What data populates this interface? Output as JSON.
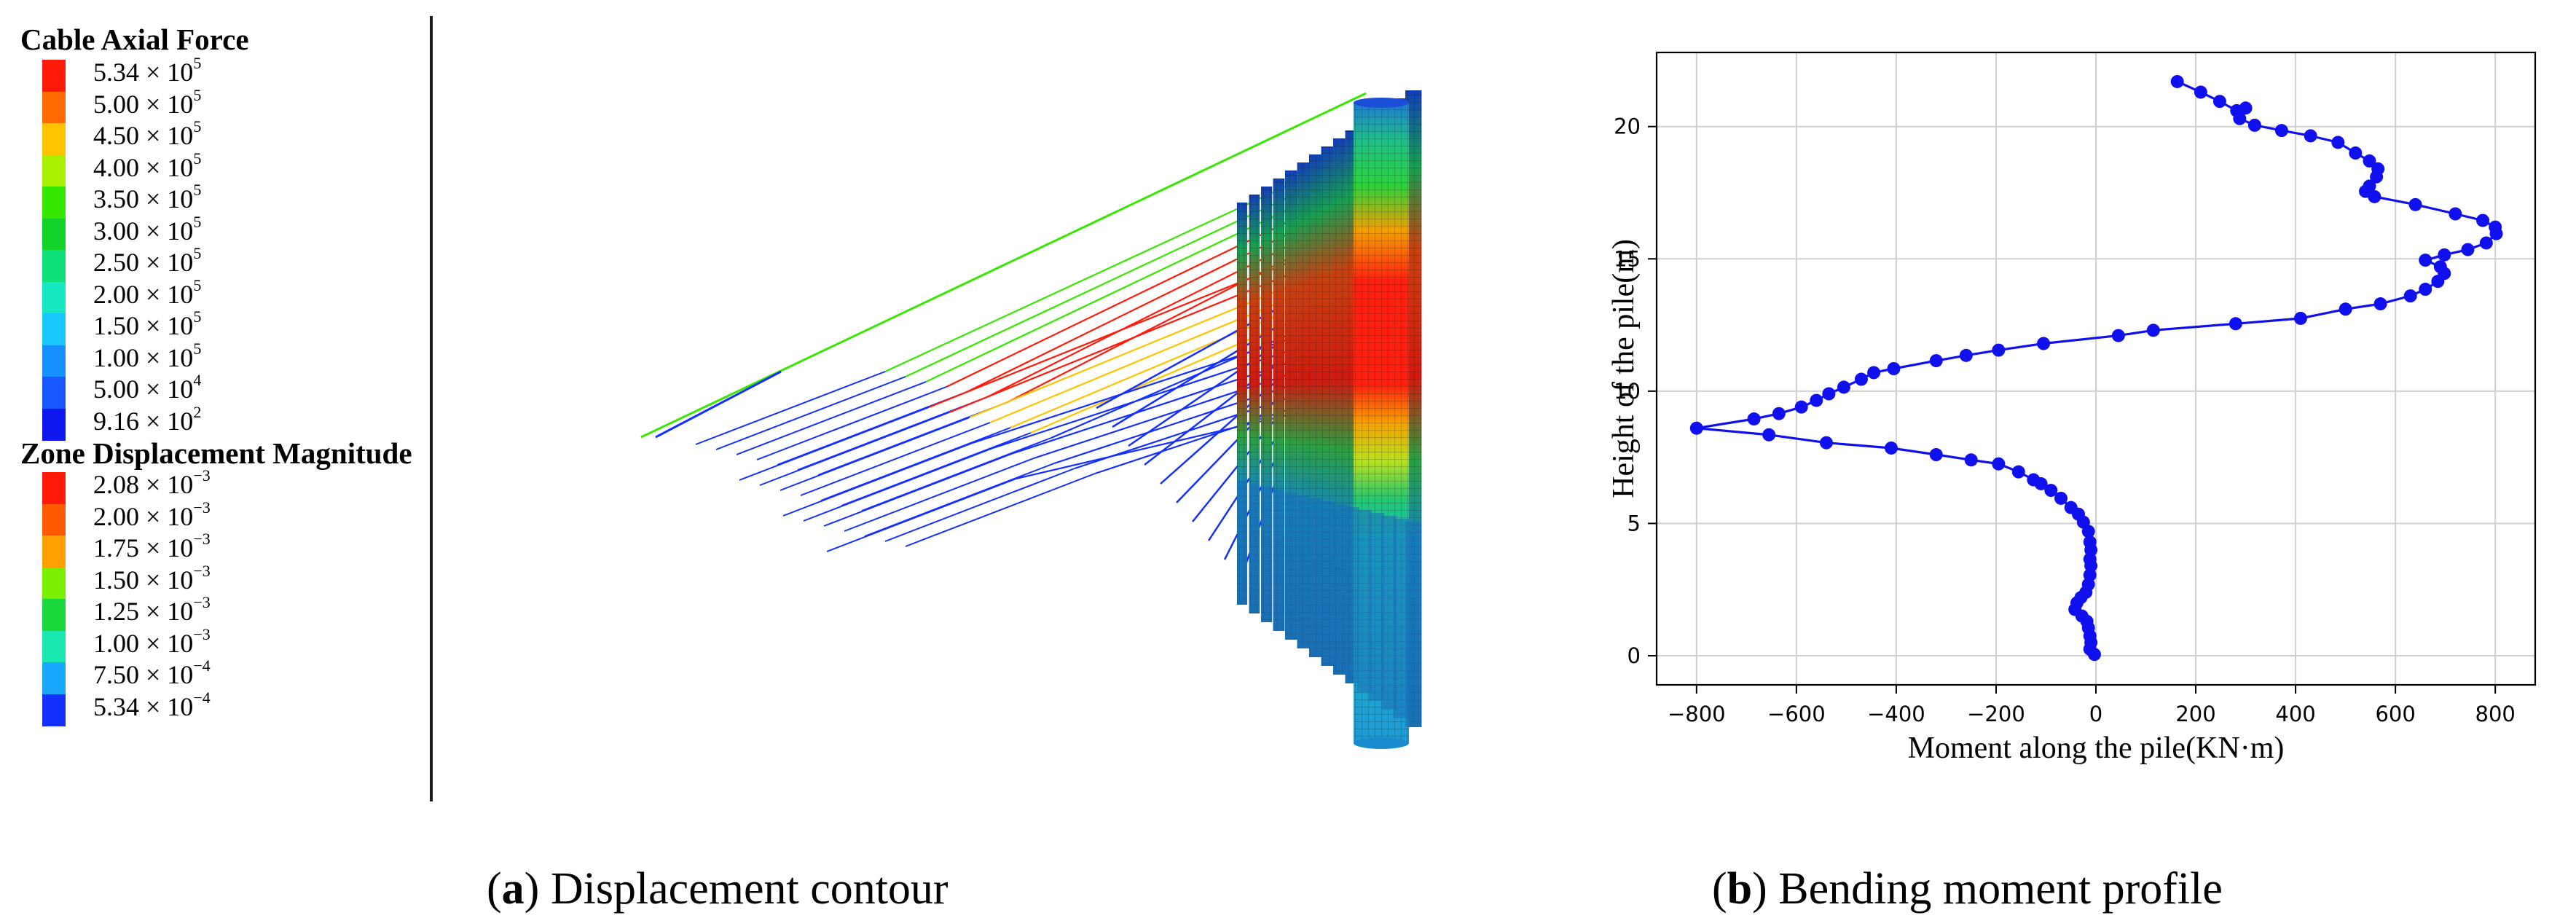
{
  "legend": {
    "cable_title": "Cable Axial Force",
    "cable_items": [
      {
        "label_base": "5.34 × 10",
        "label_exp": "5",
        "color": "#ff1a0a"
      },
      {
        "label_base": "5.00 × 10",
        "label_exp": "5",
        "color": "#ff6a00"
      },
      {
        "label_base": "4.50 × 10",
        "label_exp": "5",
        "color": "#ffc400"
      },
      {
        "label_base": "4.00 × 10",
        "label_exp": "5",
        "color": "#a8f000"
      },
      {
        "label_base": "3.50 × 10",
        "label_exp": "5",
        "color": "#36e800"
      },
      {
        "label_base": "3.00 × 10",
        "label_exp": "5",
        "color": "#13d22a"
      },
      {
        "label_base": "2.50 × 10",
        "label_exp": "5",
        "color": "#10e07a"
      },
      {
        "label_base": "2.00 × 10",
        "label_exp": "5",
        "color": "#16e8c2"
      },
      {
        "label_base": "1.50 × 10",
        "label_exp": "5",
        "color": "#17c8ff"
      },
      {
        "label_base": "1.00 × 10",
        "label_exp": "5",
        "color": "#1690ff"
      },
      {
        "label_base": "5.00 × 10",
        "label_exp": "4",
        "color": "#1856ff"
      },
      {
        "label_base": "9.16 × 10",
        "label_exp": "2",
        "color": "#0e18ee"
      }
    ],
    "zone_title": "Zone Displacement Magnitude",
    "zone_items": [
      {
        "label_base": "2.08 × 10",
        "label_exp": "−3",
        "color": "#ff1a0a"
      },
      {
        "label_base": "2.00 × 10",
        "label_exp": "−3",
        "color": "#ff5a00"
      },
      {
        "label_base": "1.75 × 10",
        "label_exp": "−3",
        "color": "#ff9f00"
      },
      {
        "label_base": "1.50 × 10",
        "label_exp": "−3",
        "color": "#7af000"
      },
      {
        "label_base": "1.25 × 10",
        "label_exp": "−3",
        "color": "#1ad83c"
      },
      {
        "label_base": "1.00 × 10",
        "label_exp": "−3",
        "color": "#19e8b0"
      },
      {
        "label_base": "7.50 × 10",
        "label_exp": "−4",
        "color": "#1aa8ff"
      },
      {
        "label_base": "5.34 × 10",
        "label_exp": "−4",
        "color": "#1430ff"
      }
    ]
  },
  "captions": {
    "a_letter": "a",
    "a_text": " Displacement contour",
    "b_letter": "b",
    "b_text": " Bending moment profile"
  },
  "chart_data": {
    "type": "line",
    "title": "",
    "xlabel": "Moment along the pile(KN·m)",
    "ylabel": "Height of the pile(m)",
    "xlim": [
      -880,
      880
    ],
    "ylim": [
      -1.1,
      22.8
    ],
    "xticks": [
      -800,
      -600,
      -400,
      -200,
      0,
      200,
      400,
      600,
      800
    ],
    "yticks": [
      0,
      5,
      10,
      15,
      20
    ],
    "grid": true,
    "series": [
      {
        "color": "#1010ee",
        "marker": "circle",
        "points": [
          [
            163,
            21.7
          ],
          [
            210,
            21.3
          ],
          [
            248,
            20.95
          ],
          [
            282,
            20.6
          ],
          [
            300,
            20.7
          ],
          [
            288,
            20.3
          ],
          [
            318,
            20.05
          ],
          [
            372,
            19.85
          ],
          [
            430,
            19.65
          ],
          [
            485,
            19.4
          ],
          [
            520,
            19.0
          ],
          [
            548,
            18.7
          ],
          [
            565,
            18.4
          ],
          [
            562,
            18.1
          ],
          [
            548,
            17.75
          ],
          [
            540,
            17.55
          ],
          [
            558,
            17.35
          ],
          [
            640,
            17.05
          ],
          [
            720,
            16.7
          ],
          [
            775,
            16.45
          ],
          [
            800,
            16.2
          ],
          [
            802,
            15.95
          ],
          [
            782,
            15.6
          ],
          [
            745,
            15.35
          ],
          [
            698,
            15.15
          ],
          [
            660,
            14.95
          ],
          [
            690,
            14.7
          ],
          [
            698,
            14.45
          ],
          [
            685,
            14.15
          ],
          [
            660,
            13.85
          ],
          [
            630,
            13.6
          ],
          [
            570,
            13.3
          ],
          [
            500,
            13.1
          ],
          [
            410,
            12.75
          ],
          [
            280,
            12.55
          ],
          [
            115,
            12.3
          ],
          [
            45,
            12.1
          ],
          [
            -105,
            11.8
          ],
          [
            -195,
            11.55
          ],
          [
            -260,
            11.35
          ],
          [
            -320,
            11.15
          ],
          [
            -405,
            10.85
          ],
          [
            -445,
            10.7
          ],
          [
            -470,
            10.45
          ],
          [
            -505,
            10.15
          ],
          [
            -535,
            9.9
          ],
          [
            -560,
            9.65
          ],
          [
            -590,
            9.4
          ],
          [
            -635,
            9.15
          ],
          [
            -685,
            8.95
          ],
          [
            -800,
            8.6
          ],
          [
            -655,
            8.35
          ],
          [
            -540,
            8.05
          ],
          [
            -410,
            7.85
          ],
          [
            -320,
            7.6
          ],
          [
            -250,
            7.4
          ],
          [
            -195,
            7.25
          ],
          [
            -155,
            6.95
          ],
          [
            -125,
            6.65
          ],
          [
            -110,
            6.5
          ],
          [
            -90,
            6.25
          ],
          [
            -70,
            5.95
          ],
          [
            -50,
            5.6
          ],
          [
            -35,
            5.35
          ],
          [
            -25,
            5.05
          ],
          [
            -15,
            4.7
          ],
          [
            -12,
            4.3
          ],
          [
            -10,
            4.0
          ],
          [
            -12,
            3.65
          ],
          [
            -10,
            3.4
          ],
          [
            -12,
            3.05
          ],
          [
            -15,
            2.7
          ],
          [
            -20,
            2.4
          ],
          [
            -30,
            2.2
          ],
          [
            -38,
            2.0
          ],
          [
            -42,
            1.75
          ],
          [
            -28,
            1.5
          ],
          [
            -18,
            1.3
          ],
          [
            -15,
            1.05
          ],
          [
            -12,
            0.75
          ],
          [
            -10,
            0.5
          ],
          [
            -12,
            0.25
          ],
          [
            -3,
            0.05
          ]
        ]
      }
    ]
  }
}
